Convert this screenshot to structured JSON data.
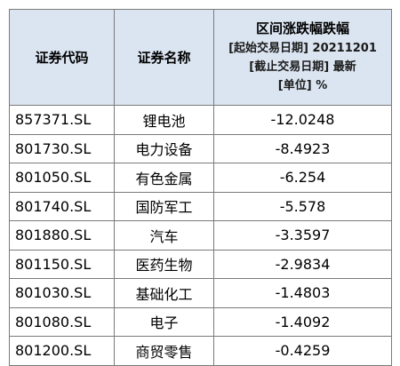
{
  "header": {
    "col_code": "证券代码",
    "col_name": "证券名称",
    "col_metric_title": "区间涨跌幅跌幅",
    "col_metric_lines": [
      "[起始交易日期] 20211201",
      "[截止交易日期] 最新",
      "[单位] %"
    ]
  },
  "rows": [
    {
      "code": "857371.SL",
      "name": "锂电池",
      "value": "-12.0248"
    },
    {
      "code": "801730.SL",
      "name": "电力设备",
      "value": "-8.4923"
    },
    {
      "code": "801050.SL",
      "name": "有色金属",
      "value": "-6.254"
    },
    {
      "code": "801740.SL",
      "name": "国防军工",
      "value": "-5.578"
    },
    {
      "code": "801880.SL",
      "name": "汽车",
      "value": "-3.3597"
    },
    {
      "code": "801150.SL",
      "name": "医药生物",
      "value": "-2.9834"
    },
    {
      "code": "801030.SL",
      "name": "基础化工",
      "value": "-1.4803"
    },
    {
      "code": "801080.SL",
      "name": "电子",
      "value": "-1.4092"
    },
    {
      "code": "801200.SL",
      "name": "商贸零售",
      "value": "-0.4259"
    }
  ]
}
